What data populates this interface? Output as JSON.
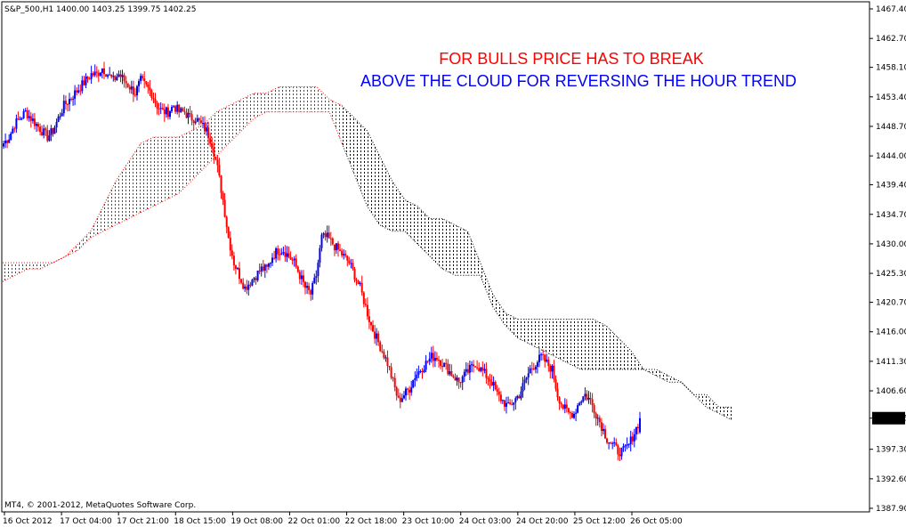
{
  "window": {
    "header": "S&P_500,H1  1400.00 1403.25 1399.75 1402.25",
    "copyright": "MT4, © 2001-2012, MetaQuotes Software Corp."
  },
  "colors": {
    "bull_candle": "#0000ff",
    "bear_candle": "#ff0000",
    "cloud_bullish": "#ff0000",
    "cloud_bearish": "#000000",
    "annotation_line1": "#ff0000",
    "annotation_line2": "#0000ff",
    "price_label_bg": "#000000",
    "price_label_fg": "#ffffff"
  },
  "annotations": [
    {
      "text": "FOR BULLS PRICE HAS TO BREAK",
      "color": "#ff0000"
    },
    {
      "text": "ABOVE THE CLOUD FOR REVERSING THE HOUR TREND",
      "color": "#0000ff"
    }
  ],
  "chart_data": {
    "type": "candlestick",
    "symbol": "S&P_500",
    "timeframe": "H1",
    "ohlc_last": {
      "open": 1400.0,
      "high": 1403.25,
      "low": 1399.75,
      "close": 1402.25
    },
    "current_price": "1402.25",
    "ylim": [
      1387.9,
      1467.4
    ],
    "y_ticks": [
      "1467.40",
      "1462.70",
      "1458.10",
      "1453.40",
      "1448.70",
      "1444.00",
      "1439.40",
      "1434.70",
      "1430.00",
      "1425.30",
      "1420.70",
      "1416.00",
      "1411.30",
      "1406.60",
      "1402.25",
      "1397.30",
      "1392.60",
      "1387.90"
    ],
    "x_ticks": [
      "16 Oct 2012",
      "17 Oct 04:00",
      "17 Oct 21:00",
      "18 Oct 15:00",
      "19 Oct 08:00",
      "22 Oct 01:00",
      "22 Oct 18:00",
      "23 Oct 10:00",
      "24 Oct 03:00",
      "24 Oct 20:00",
      "25 Oct 12:00",
      "26 Oct 05:00"
    ],
    "price_path": [
      1446,
      1447,
      1449,
      1450,
      1451,
      1450,
      1449,
      1448,
      1447,
      1448,
      1450,
      1452,
      1453,
      1454,
      1455,
      1456,
      1457,
      1457,
      1458,
      1457,
      1456,
      1457,
      1456,
      1455,
      1454,
      1456,
      1455,
      1454,
      1452,
      1451,
      1451,
      1452,
      1451,
      1451,
      1450,
      1450,
      1449,
      1448,
      1446,
      1442,
      1437,
      1431,
      1427,
      1425,
      1423,
      1424,
      1425,
      1426,
      1426,
      1428,
      1429,
      1429,
      1428,
      1427,
      1425,
      1423,
      1422,
      1425,
      1431,
      1431,
      1430,
      1429,
      1428,
      1427,
      1425,
      1423,
      1420,
      1417,
      1415,
      1413,
      1411,
      1408,
      1405,
      1406,
      1407,
      1409,
      1410,
      1411,
      1412,
      1412,
      1411,
      1410,
      1409,
      1408,
      1409,
      1410,
      1411,
      1410,
      1409,
      1408,
      1406,
      1405,
      1404,
      1405,
      1406,
      1408,
      1410,
      1411,
      1412,
      1411,
      1410,
      1406,
      1404,
      1403,
      1403,
      1405,
      1406,
      1405,
      1403,
      1401,
      1399,
      1398,
      1397,
      1397,
      1398,
      1400,
      1402
    ],
    "cloud_span_a": [
      1424,
      1425,
      1426,
      1426,
      1427,
      1428,
      1430,
      1432,
      1436,
      1440,
      1443,
      1446,
      1447,
      1447,
      1447,
      1448,
      1449,
      1451,
      1452,
      1453,
      1454,
      1454,
      1455,
      1455,
      1455,
      1455,
      1453,
      1452,
      1450,
      1448,
      1444,
      1440,
      1437,
      1436,
      1434,
      1434,
      1433,
      1432,
      1427,
      1422,
      1419,
      1418,
      1418,
      1418,
      1418,
      1418,
      1418,
      1418,
      1417,
      1415,
      1413,
      1410,
      1409,
      1408,
      1408,
      1406,
      1406,
      1404,
      1404
    ],
    "cloud_span_b": [
      1427,
      1427,
      1427,
      1427,
      1427,
      1428,
      1429,
      1431,
      1432,
      1433,
      1434,
      1435,
      1436,
      1437,
      1438,
      1440,
      1442,
      1444,
      1446,
      1448,
      1450,
      1451,
      1451,
      1451,
      1451,
      1451,
      1451,
      1446,
      1441,
      1436,
      1433,
      1432,
      1432,
      1430,
      1428,
      1426,
      1425,
      1425,
      1425,
      1420,
      1417,
      1415,
      1414,
      1413,
      1412,
      1411,
      1410,
      1410,
      1410,
      1410,
      1410,
      1410,
      1410,
      1409,
      1408,
      1406,
      1404,
      1403,
      1402
    ],
    "cloud_twist_index": 27
  }
}
